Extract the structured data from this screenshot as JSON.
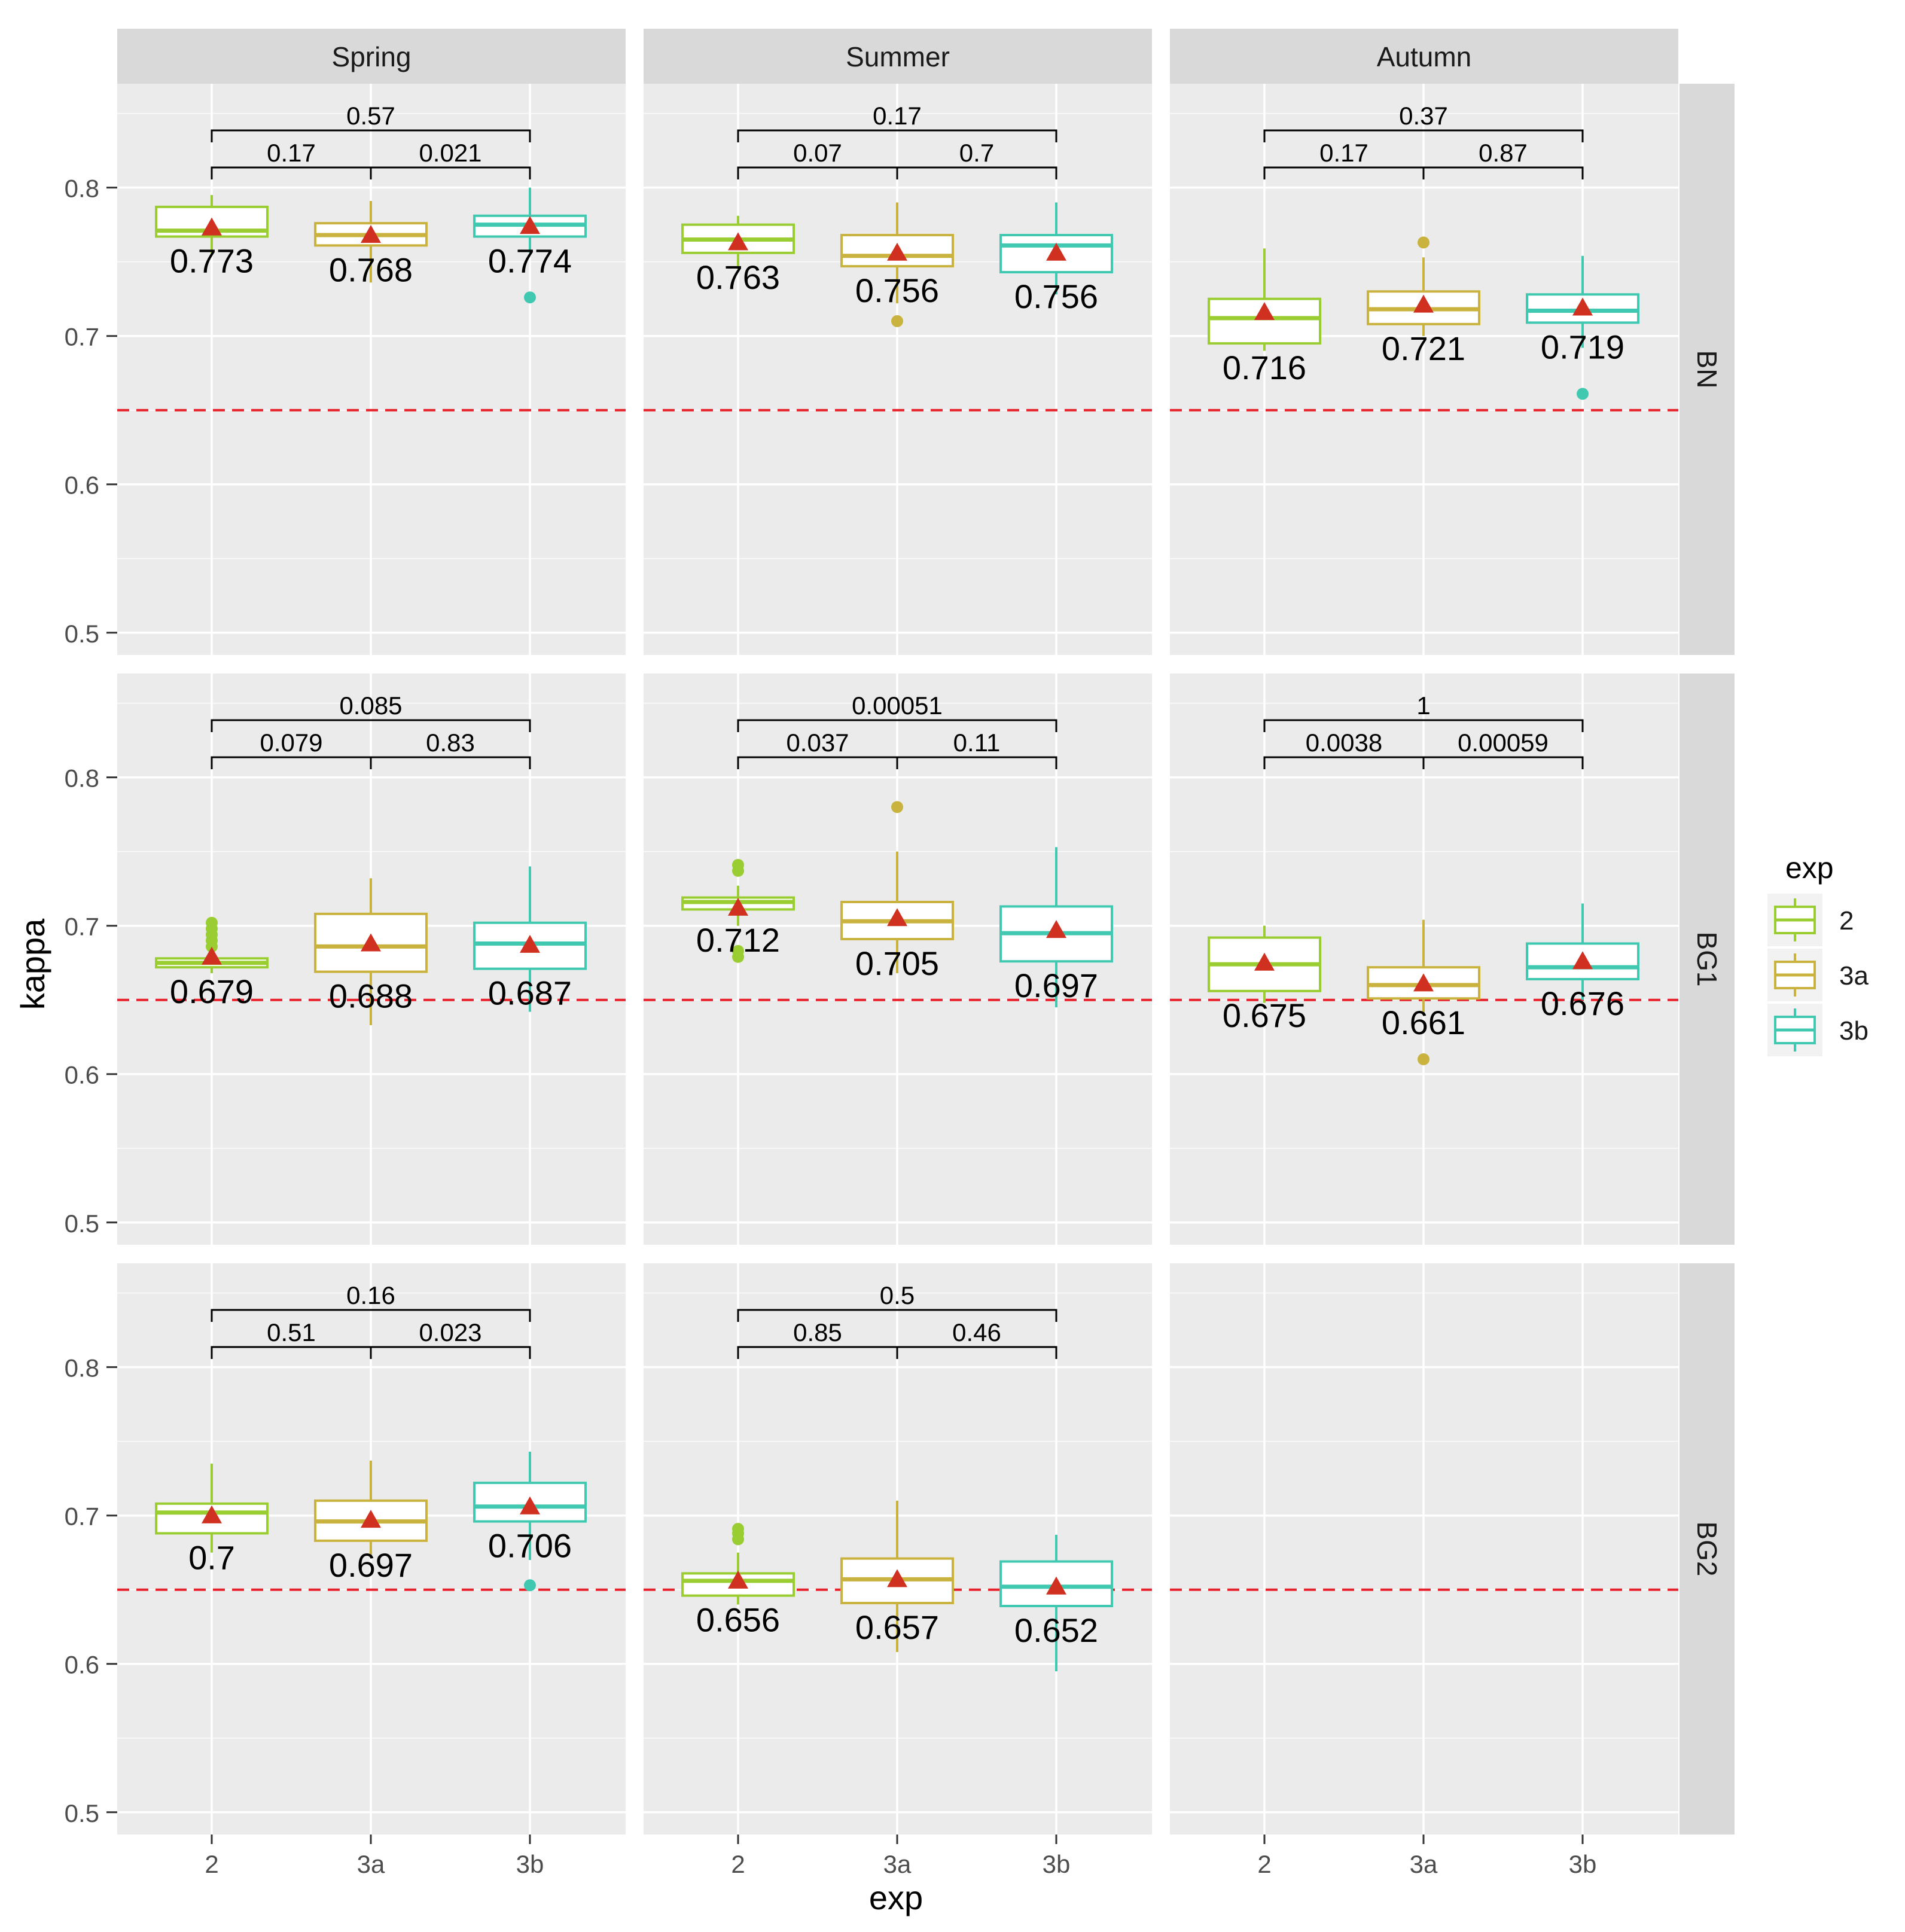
{
  "chart_data": {
    "type": "boxplot",
    "facet_cols": [
      "Spring",
      "Summer",
      "Autumn"
    ],
    "facet_rows": [
      "BN",
      "BG1",
      "BG2"
    ],
    "xlabel": "exp",
    "ylabel": "kappa",
    "categories": [
      "2",
      "3a",
      "3b"
    ],
    "ylim": [
      0.485,
      0.87
    ],
    "yticks": [
      0.5,
      0.6,
      0.7,
      0.8
    ],
    "ytick_labels": [
      "0.5",
      "0.6",
      "0.7",
      "0.8"
    ],
    "reference_line": 0.65,
    "legend": {
      "title": "exp",
      "items": [
        "2",
        "3a",
        "3b"
      ],
      "position": "right"
    },
    "colors": {
      "2": "#9acd32",
      "3a": "#c9b33e",
      "3b": "#40c9b0",
      "mean": "#d03020",
      "ref": "#e8202a",
      "panel": "#ebebeb",
      "strip": "#d9d9d9"
    },
    "panels": [
      {
        "row": "BN",
        "col": "Spring",
        "pvalues": {
          "2_3a": "0.17",
          "3a_3b": "0.021",
          "2_3b": "0.57"
        },
        "boxes": [
          {
            "exp": "2",
            "min": 0.755,
            "q1": 0.767,
            "median": 0.771,
            "q3": 0.787,
            "max": 0.795,
            "mean": 0.773,
            "label": "0.773",
            "outliers": []
          },
          {
            "exp": "3a",
            "min": 0.736,
            "q1": 0.761,
            "median": 0.768,
            "q3": 0.776,
            "max": 0.791,
            "mean": 0.768,
            "label": "0.768",
            "outliers": []
          },
          {
            "exp": "3b",
            "min": 0.756,
            "q1": 0.767,
            "median": 0.775,
            "q3": 0.781,
            "max": 0.8,
            "mean": 0.774,
            "label": "0.774",
            "outliers": [
              0.726
            ]
          }
        ]
      },
      {
        "row": "BN",
        "col": "Summer",
        "pvalues": {
          "2_3a": "0.07",
          "3a_3b": "0.7",
          "2_3b": "0.17"
        },
        "boxes": [
          {
            "exp": "2",
            "min": 0.745,
            "q1": 0.756,
            "median": 0.765,
            "q3": 0.775,
            "max": 0.781,
            "mean": 0.763,
            "label": "0.763",
            "outliers": []
          },
          {
            "exp": "3a",
            "min": 0.722,
            "q1": 0.747,
            "median": 0.754,
            "q3": 0.768,
            "max": 0.79,
            "mean": 0.756,
            "label": "0.756",
            "outliers": [
              0.71
            ]
          },
          {
            "exp": "3b",
            "min": 0.728,
            "q1": 0.743,
            "median": 0.761,
            "q3": 0.768,
            "max": 0.79,
            "mean": 0.756,
            "label": "0.756",
            "outliers": []
          }
        ]
      },
      {
        "row": "BN",
        "col": "Autumn",
        "pvalues": {
          "2_3a": "0.17",
          "3a_3b": "0.87",
          "2_3b": "0.37"
        },
        "boxes": [
          {
            "exp": "2",
            "min": 0.69,
            "q1": 0.695,
            "median": 0.712,
            "q3": 0.725,
            "max": 0.759,
            "mean": 0.716,
            "label": "0.716",
            "outliers": []
          },
          {
            "exp": "3a",
            "min": 0.7,
            "q1": 0.708,
            "median": 0.718,
            "q3": 0.73,
            "max": 0.753,
            "mean": 0.721,
            "label": "0.721",
            "outliers": [
              0.763
            ]
          },
          {
            "exp": "3b",
            "min": 0.692,
            "q1": 0.709,
            "median": 0.717,
            "q3": 0.728,
            "max": 0.754,
            "mean": 0.719,
            "label": "0.719",
            "outliers": [
              0.661
            ]
          }
        ]
      },
      {
        "row": "BG1",
        "col": "Spring",
        "pvalues": {
          "2_3a": "0.079",
          "3a_3b": "0.83",
          "2_3b": "0.085"
        },
        "boxes": [
          {
            "exp": "2",
            "min": 0.668,
            "q1": 0.672,
            "median": 0.675,
            "q3": 0.678,
            "max": 0.68,
            "mean": 0.679,
            "label": "0.679",
            "outliers": [
              0.702,
              0.698,
              0.694,
              0.69,
              0.686
            ]
          },
          {
            "exp": "3a",
            "min": 0.633,
            "q1": 0.669,
            "median": 0.686,
            "q3": 0.708,
            "max": 0.732,
            "mean": 0.688,
            "label": "0.688",
            "outliers": []
          },
          {
            "exp": "3b",
            "min": 0.642,
            "q1": 0.671,
            "median": 0.688,
            "q3": 0.702,
            "max": 0.74,
            "mean": 0.687,
            "label": "0.687",
            "outliers": []
          }
        ]
      },
      {
        "row": "BG1",
        "col": "Summer",
        "pvalues": {
          "2_3a": "0.037",
          "3a_3b": "0.11",
          "2_3b": "0.00051"
        },
        "boxes": [
          {
            "exp": "2",
            "min": 0.7,
            "q1": 0.711,
            "median": 0.716,
            "q3": 0.719,
            "max": 0.727,
            "mean": 0.712,
            "label": "0.712",
            "outliers": [
              0.741,
              0.737,
              0.683,
              0.679
            ]
          },
          {
            "exp": "3a",
            "min": 0.668,
            "q1": 0.691,
            "median": 0.703,
            "q3": 0.716,
            "max": 0.75,
            "mean": 0.705,
            "label": "0.705",
            "outliers": [
              0.78
            ]
          },
          {
            "exp": "3b",
            "min": 0.645,
            "q1": 0.676,
            "median": 0.695,
            "q3": 0.713,
            "max": 0.753,
            "mean": 0.697,
            "label": "0.697",
            "outliers": []
          }
        ]
      },
      {
        "row": "BG1",
        "col": "Autumn",
        "pvalues": {
          "2_3a": "0.0038",
          "3a_3b": "0.00059",
          "2_3b": "1"
        },
        "boxes": [
          {
            "exp": "2",
            "min": 0.648,
            "q1": 0.656,
            "median": 0.674,
            "q3": 0.692,
            "max": 0.7,
            "mean": 0.675,
            "label": "0.675",
            "outliers": []
          },
          {
            "exp": "3a",
            "min": 0.64,
            "q1": 0.651,
            "median": 0.66,
            "q3": 0.672,
            "max": 0.704,
            "mean": 0.661,
            "label": "0.661",
            "outliers": [
              0.61
            ]
          },
          {
            "exp": "3b",
            "min": 0.65,
            "q1": 0.664,
            "median": 0.672,
            "q3": 0.688,
            "max": 0.715,
            "mean": 0.676,
            "label": "0.676",
            "outliers": []
          }
        ]
      },
      {
        "row": "BG2",
        "col": "Spring",
        "pvalues": {
          "2_3a": "0.51",
          "3a_3b": "0.023",
          "2_3b": "0.16"
        },
        "boxes": [
          {
            "exp": "2",
            "min": 0.675,
            "q1": 0.688,
            "median": 0.702,
            "q3": 0.708,
            "max": 0.735,
            "mean": 0.7,
            "label": "0.7",
            "outliers": []
          },
          {
            "exp": "3a",
            "min": 0.672,
            "q1": 0.683,
            "median": 0.696,
            "q3": 0.71,
            "max": 0.737,
            "mean": 0.697,
            "label": "0.697",
            "outliers": []
          },
          {
            "exp": "3b",
            "min": 0.67,
            "q1": 0.696,
            "median": 0.706,
            "q3": 0.722,
            "max": 0.743,
            "mean": 0.706,
            "label": "0.706",
            "outliers": [
              0.653
            ]
          }
        ]
      },
      {
        "row": "BG2",
        "col": "Summer",
        "pvalues": {
          "2_3a": "0.85",
          "3a_3b": "0.46",
          "2_3b": "0.5"
        },
        "boxes": [
          {
            "exp": "2",
            "min": 0.64,
            "q1": 0.646,
            "median": 0.656,
            "q3": 0.661,
            "max": 0.675,
            "mean": 0.656,
            "label": "0.656",
            "outliers": [
              0.691,
              0.688,
              0.684
            ]
          },
          {
            "exp": "3a",
            "min": 0.608,
            "q1": 0.641,
            "median": 0.657,
            "q3": 0.671,
            "max": 0.71,
            "mean": 0.657,
            "label": "0.657",
            "outliers": []
          },
          {
            "exp": "3b",
            "min": 0.595,
            "q1": 0.639,
            "median": 0.652,
            "q3": 0.669,
            "max": 0.687,
            "mean": 0.652,
            "label": "0.652",
            "outliers": []
          }
        ]
      },
      {
        "row": "BG2",
        "col": "Autumn",
        "pvalues": null,
        "boxes": []
      }
    ]
  }
}
